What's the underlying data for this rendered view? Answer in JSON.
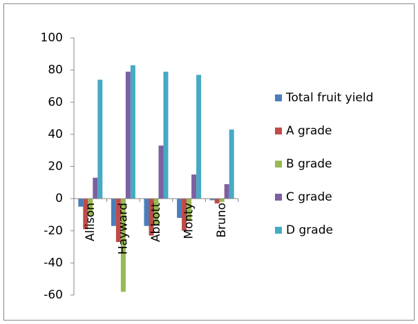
{
  "chart_data": {
    "type": "bar",
    "categories": [
      "Allison",
      "Hayward",
      "Abbott",
      "Monty",
      "Bruno"
    ],
    "series": [
      {
        "name": "Total fruit yield",
        "color": "#4a7ebb",
        "values": [
          -5,
          -17,
          -17,
          -12,
          -1
        ]
      },
      {
        "name": "A grade",
        "color": "#be4b48",
        "values": [
          -19,
          -27,
          -23,
          -20,
          -3
        ]
      },
      {
        "name": "B grade",
        "color": "#98b954",
        "values": [
          -11,
          -58,
          -16,
          -14,
          -2
        ]
      },
      {
        "name": "C grade",
        "color": "#7d60a0",
        "values": [
          13,
          79,
          33,
          15,
          9
        ]
      },
      {
        "name": "D grade",
        "color": "#46aac5",
        "values": [
          74,
          83,
          79,
          77,
          43
        ]
      }
    ],
    "ylim": [
      -60,
      100
    ],
    "yticks": [
      -60,
      -40,
      -20,
      0,
      20,
      40,
      60,
      80,
      100
    ],
    "grid": false
  }
}
